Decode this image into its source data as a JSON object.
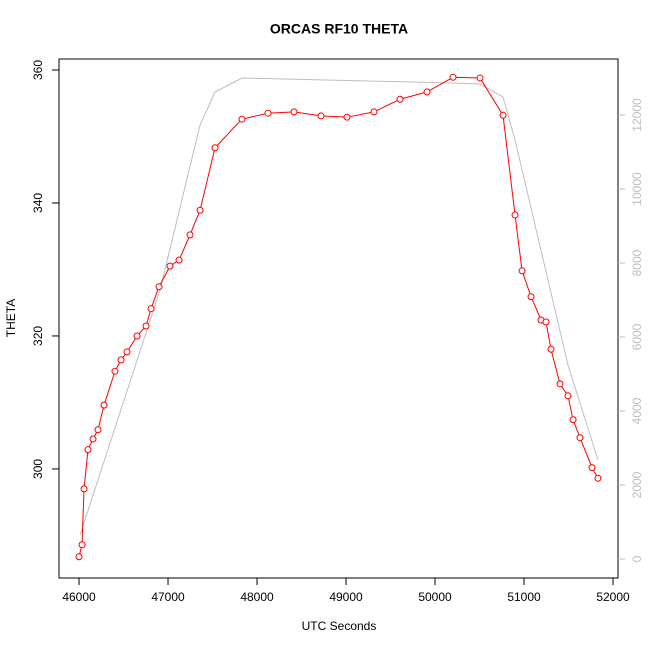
{
  "chart_data": {
    "type": "line",
    "title": "ORCAS RF10 THETA",
    "x_label": "UTC Seconds",
    "y_label": "THETA",
    "xlim": [
      45775,
      52056
    ],
    "xticks": [
      46000,
      47000,
      48000,
      49000,
      50000,
      51000,
      52000
    ],
    "ylim": [
      283.6,
      361.65
    ],
    "yticks": [
      300,
      320,
      340,
      360
    ],
    "y2lim": [
      -514,
      13514
    ],
    "y2ticks": [
      0,
      2000,
      4000,
      6000,
      8000,
      10000,
      12000
    ],
    "series": [
      {
        "color": "#bebebe",
        "axis": "y2",
        "marker": "none",
        "x": [
          46011,
          46910,
          47360,
          47528,
          47831,
          50202,
          50506,
          50764,
          50899,
          51494,
          51831
        ],
        "values": [
          649,
          7270,
          11730,
          12622,
          13000,
          12865,
          12838,
          12486,
          11324,
          5243,
          2676
        ]
      },
      {
        "color": "#ff0000",
        "axis": "y",
        "marker": "circle",
        "x": [
          46000,
          46034,
          46056,
          46101,
          46157,
          46213,
          46281,
          46404,
          46472,
          46539,
          46652,
          46753,
          46809,
          46899,
          47022,
          47124,
          47247,
          47360,
          47528,
          47831,
          48124,
          48416,
          48719,
          49011,
          49315,
          49607,
          49910,
          50202,
          50506,
          50764,
          50899,
          50978,
          51079,
          51191,
          51247,
          51303,
          51404,
          51494,
          51551,
          51629,
          51764,
          51831
        ],
        "values": [
          286.8,
          288.6,
          297.0,
          302.9,
          304.5,
          305.9,
          309.6,
          314.7,
          316.4,
          317.6,
          320.0,
          321.5,
          324.1,
          327.4,
          330.5,
          331.4,
          335.2,
          338.9,
          348.3,
          352.6,
          353.5,
          353.7,
          353.1,
          352.9,
          353.7,
          355.6,
          356.7,
          358.9,
          358.8,
          353.2,
          338.2,
          329.8,
          325.9,
          322.4,
          322.1,
          318.0,
          312.8,
          311.0,
          307.4,
          304.7,
          300.2,
          298.6
        ]
      }
    ]
  }
}
